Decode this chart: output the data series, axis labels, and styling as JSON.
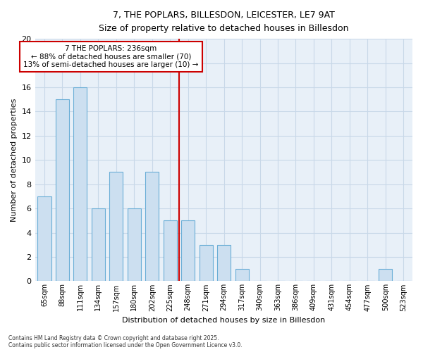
{
  "title_line1": "7, THE POPLARS, BILLESDON, LEICESTER, LE7 9AT",
  "title_line2": "Size of property relative to detached houses in Billesdon",
  "xlabel": "Distribution of detached houses by size in Billesdon",
  "ylabel": "Number of detached properties",
  "bar_labels": [
    "65sqm",
    "88sqm",
    "111sqm",
    "134sqm",
    "157sqm",
    "180sqm",
    "202sqm",
    "225sqm",
    "248sqm",
    "271sqm",
    "294sqm",
    "317sqm",
    "340sqm",
    "363sqm",
    "386sqm",
    "409sqm",
    "431sqm",
    "454sqm",
    "477sqm",
    "500sqm",
    "523sqm"
  ],
  "bar_values": [
    7,
    15,
    16,
    6,
    9,
    6,
    9,
    5,
    5,
    3,
    3,
    1,
    0,
    0,
    0,
    0,
    0,
    0,
    0,
    1,
    0
  ],
  "bar_color": "#ccdff0",
  "bar_edgecolor": "#6aaed6",
  "grid_color": "#c8d8e8",
  "background_color": "#e8f0f8",
  "vline_x": 7.5,
  "vline_color": "#cc0000",
  "annotation_text": "7 THE POPLARS: 236sqm\n← 88% of detached houses are smaller (70)\n13% of semi-detached houses are larger (10) →",
  "annotation_box_facecolor": "#ffffff",
  "annotation_box_edgecolor": "#cc0000",
  "ylim": [
    0,
    20
  ],
  "yticks": [
    0,
    2,
    4,
    6,
    8,
    10,
    12,
    14,
    16,
    18,
    20
  ],
  "footer": "Contains HM Land Registry data © Crown copyright and database right 2025.\nContains public sector information licensed under the Open Government Licence v3.0."
}
